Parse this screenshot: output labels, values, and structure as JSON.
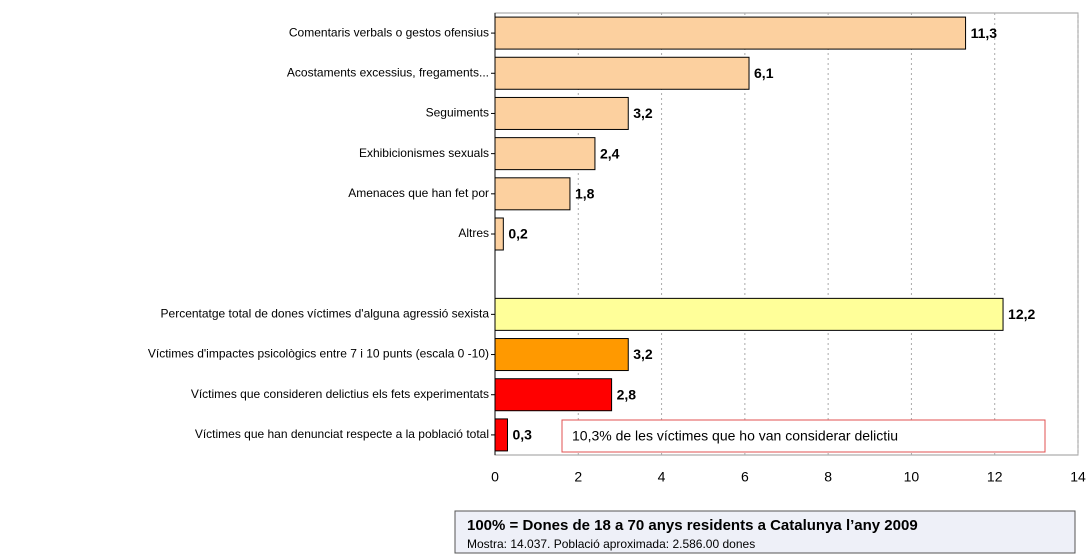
{
  "chart_data": {
    "type": "hbar",
    "categories": [
      "Comentaris verbals o gestos ofensius",
      "Acostaments excessius, fregaments...",
      "Seguiments",
      "Exhibicionismes sexuals",
      "Amenaces que han fet por",
      "Altres",
      null,
      "Percentatge total de dones víctimes d'alguna agressió sexista",
      "Víctimes d'impactes psicològics entre 7 i 10 punts (escala 0 -10)",
      "Víctimes que consideren delictius els fets experimentats",
      "Víctimes que han denunciat respecte a la població total"
    ],
    "values": [
      11.3,
      6.1,
      3.2,
      2.4,
      1.8,
      0.2,
      null,
      12.2,
      3.2,
      2.8,
      0.3
    ],
    "value_labels": [
      "11,3",
      "6,1",
      "3,2",
      "2,4",
      "1,8",
      "0,2",
      null,
      "12,2",
      "3,2",
      "2,8",
      "0,3"
    ],
    "colors": [
      "#fcd09f",
      "#fcd09f",
      "#fcd09f",
      "#fcd09f",
      "#fcd09f",
      "#fcd09f",
      null,
      "#ffff99",
      "#ff9900",
      "#ff0000",
      "#ff0000"
    ],
    "xlim": [
      0,
      14
    ],
    "xticks": [
      0,
      2,
      4,
      6,
      8,
      10,
      12,
      14
    ],
    "grid": true,
    "annotation": "10,3% de les víctimes que ho van considerar delictiu",
    "note_title": "100% = Dones de 18 a 70 anys residents a Catalunya l’any 2009",
    "note_text": "Mostra: 14.037. Població aproximada: 2.586.00 dones"
  }
}
